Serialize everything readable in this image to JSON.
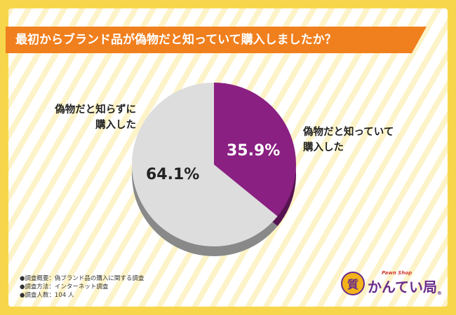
{
  "title": "最初からブランド品が偽物だと知っていて購入しましたか？",
  "chart_data": {
    "type": "pie",
    "slices": [
      {
        "label": "偽物だと知っていて\n購入した",
        "value": 35.9,
        "value_label": "35.9%",
        "color": "#8a2082"
      },
      {
        "label": "偽物だと知らずに\n購入した",
        "value": 64.1,
        "value_label": "64.1%",
        "color": "#dddddd"
      }
    ]
  },
  "labels": {
    "known_line1": "偽物だと知っていて",
    "known_line2": "購入した",
    "unknown_line1": "偽物だと知らずに",
    "unknown_line2": "購入した"
  },
  "notes": {
    "line1": "●調査概要：偽ブランド品の購入に関する調査",
    "line2": "●調査方法：インターネット調査",
    "line3": "●調査人数：104 人"
  },
  "logo": {
    "badge": "質",
    "sub": "Pawn Shop",
    "name": "かんてい局",
    "reg": "®"
  }
}
